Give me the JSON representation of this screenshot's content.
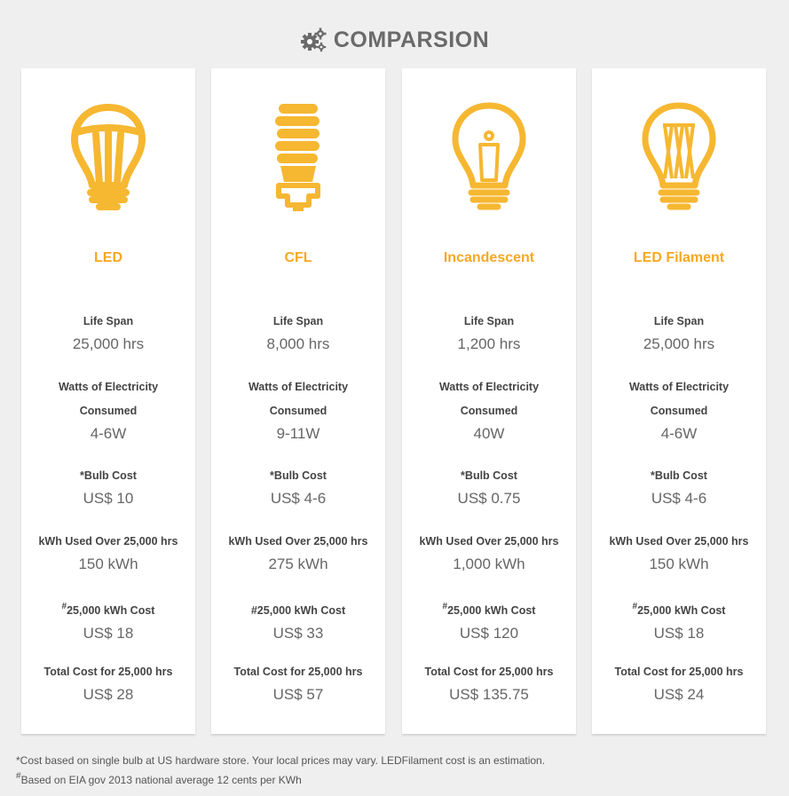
{
  "header": {
    "title": "COMPARSION",
    "icon": "gears-icon"
  },
  "colors": {
    "accent": "#f6a821",
    "background": "#efefef"
  },
  "cards": [
    {
      "name": "LED",
      "icon": "led-bulb-icon",
      "life_label": "Life Span",
      "life": "25,000 hrs",
      "watts_label_1": "Watts of Electricity",
      "watts_label_2": "Consumed",
      "watts": "4-6W",
      "cost_label": "*Bulb Cost",
      "cost": "US$ 10",
      "kwh_label": "kWh Used Over 25,000 hrs",
      "kwh": "150 kWh",
      "kwh_cost_mark": "#",
      "kwh_cost_label": "25,000 kWh Cost",
      "kwh_cost": "US$ 18",
      "total_label": "Total Cost for 25,000 hrs",
      "total": "US$ 28"
    },
    {
      "name": "CFL",
      "icon": "cfl-bulb-icon",
      "life_label": "Life Span",
      "life": "8,000 hrs",
      "watts_label_1": "Watts of Electricity",
      "watts_label_2": "Consumed",
      "watts": "9-11W",
      "cost_label": "*Bulb Cost",
      "cost": "US$ 4-6",
      "kwh_label": "kWh Used Over 25,000 hrs",
      "kwh": "275 kWh",
      "kwh_cost_mark": "",
      "kwh_cost_label": "#25,000 kWh Cost",
      "kwh_cost": "US$ 33",
      "total_label": "Total Cost for 25,000 hrs",
      "total": "US$ 57"
    },
    {
      "name": "Incandescent",
      "icon": "incandescent-bulb-icon",
      "life_label": "Life Span",
      "life": "1,200 hrs",
      "watts_label_1": "Watts of Electricity",
      "watts_label_2": "Consumed",
      "watts": "40W",
      "cost_label": "*Bulb Cost",
      "cost": "US$ 0.75",
      "kwh_label": "kWh Used Over 25,000 hrs",
      "kwh": "1,000 kWh",
      "kwh_cost_mark": "#",
      "kwh_cost_label": "25,000 kWh Cost",
      "kwh_cost": "US$ 120",
      "total_label": "Total Cost for 25,000 hrs",
      "total": "US$ 135.75"
    },
    {
      "name": "LED Filament",
      "icon": "led-filament-bulb-icon",
      "life_label": "Life Span",
      "life": "25,000 hrs",
      "watts_label_1": "Watts of Electricity",
      "watts_label_2": "Consumed",
      "watts": "4-6W",
      "cost_label": "*Bulb Cost",
      "cost": "US$ 4-6",
      "kwh_label": "kWh Used Over 25,000 hrs",
      "kwh": "150 kWh",
      "kwh_cost_mark": "#",
      "kwh_cost_label": "25,000 kWh Cost",
      "kwh_cost": "US$ 18",
      "total_label": "Total Cost for 25,000 hrs",
      "total": "US$ 24"
    }
  ],
  "footnotes": {
    "cost_note": "*Cost based on single bulb at US hardware store. Your local prices may vary. LEDFilament cost is an estimation.",
    "eia_mark": "#",
    "eia_note": "Based on EIA gov 2013 national average 12 cents per KWh"
  }
}
